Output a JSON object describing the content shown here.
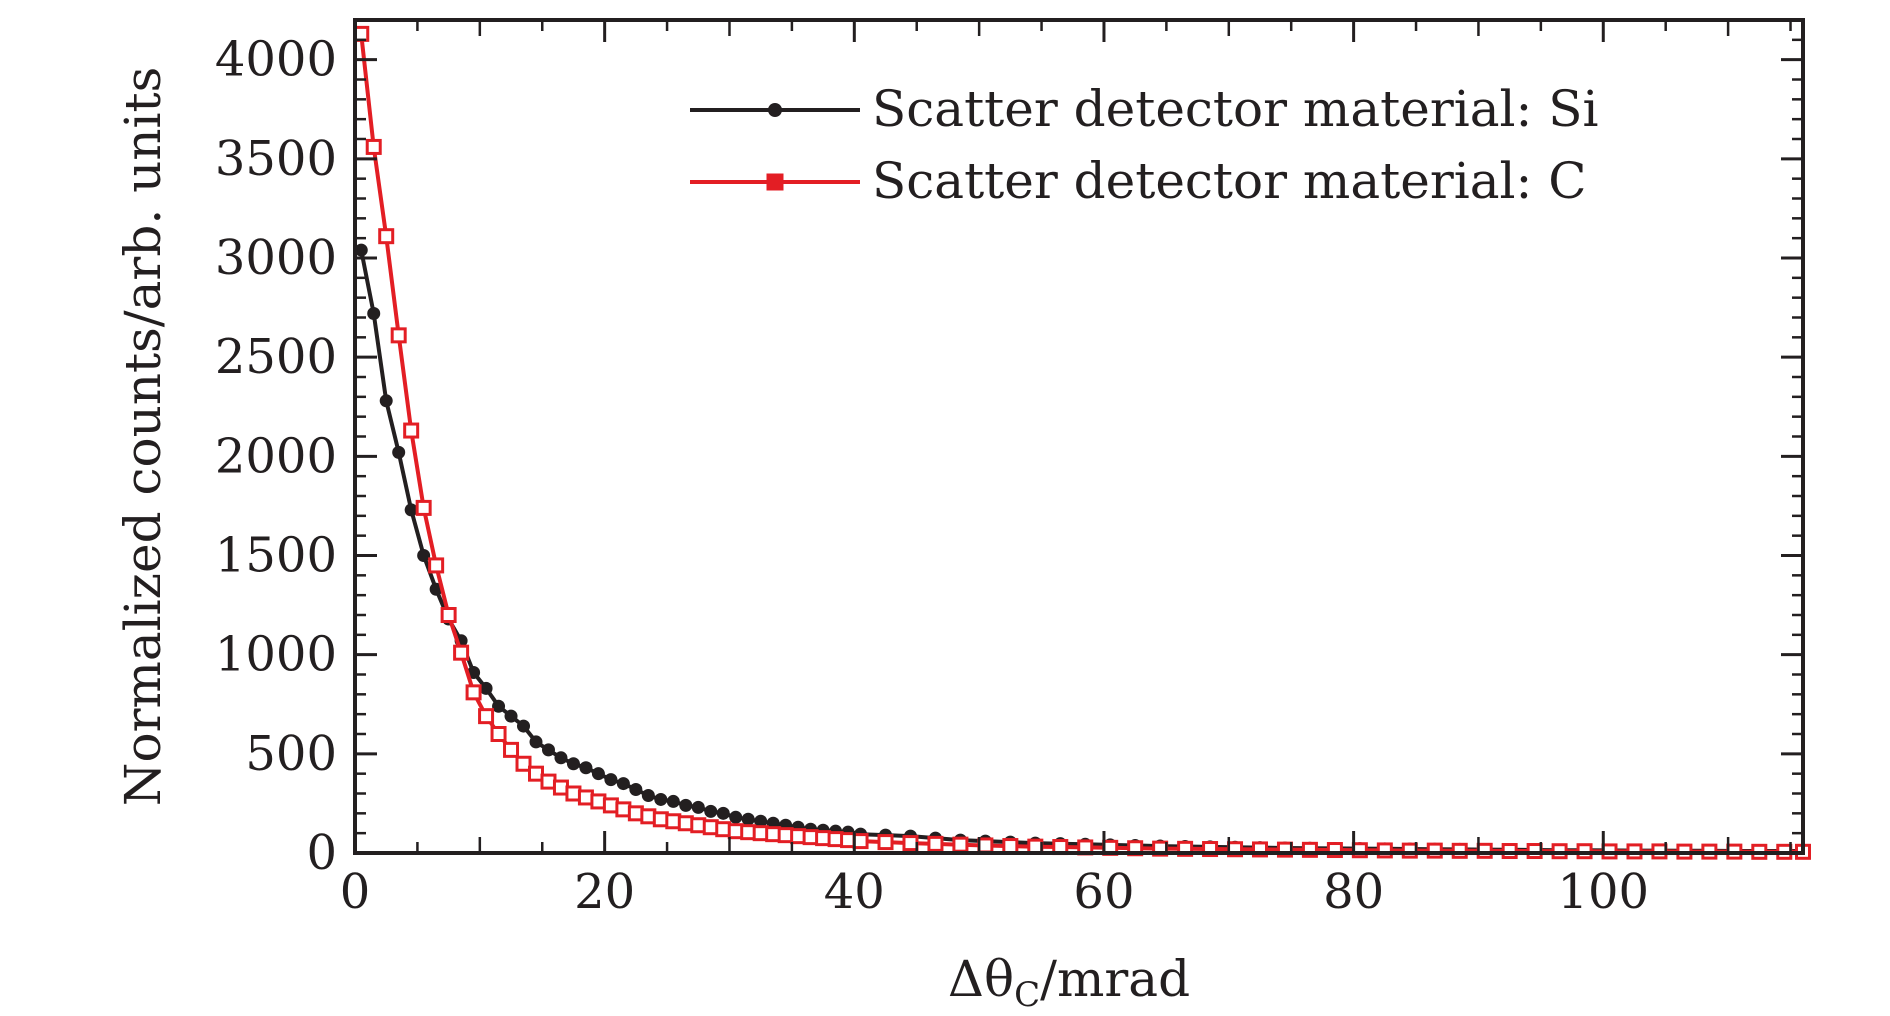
{
  "chart_data": {
    "type": "line",
    "xlabel_prefix": "Δθ",
    "xlabel_subscript": "C",
    "xlabel_suffix": "/mrad",
    "ylabel": "Normalized counts/arb. units",
    "xlim": [
      0,
      116
    ],
    "ylim": [
      0,
      4200
    ],
    "x_ticks": [
      0,
      20,
      40,
      60,
      80,
      100
    ],
    "y_ticks": [
      0,
      500,
      1000,
      1500,
      2000,
      2500,
      3000,
      3500,
      4000
    ],
    "x_tick_labels": [
      "0",
      "20",
      "40",
      "60",
      "80",
      "100"
    ],
    "y_tick_labels": [
      "0",
      "500",
      "1000",
      "1500",
      "2000",
      "2500",
      "3000",
      "3500",
      "4000"
    ],
    "grid": false,
    "legend_position": "top-right",
    "series": [
      {
        "name": "Scatter detector material: Si",
        "color": "#231f20",
        "marker": "circle",
        "x": [
          0.5,
          1.5,
          2.5,
          3.5,
          4.5,
          5.5,
          6.5,
          7.5,
          8.5,
          9.5,
          10.5,
          11.5,
          12.5,
          13.5,
          14.5,
          15.5,
          16.5,
          17.5,
          18.5,
          19.5,
          20.5,
          21.5,
          22.5,
          23.5,
          24.5,
          25.5,
          26.5,
          27.5,
          28.5,
          29.5,
          30.5,
          31.5,
          32.5,
          33.5,
          34.5,
          35.5,
          36.5,
          37.5,
          38.5,
          39.5,
          40.5,
          42.5,
          44.5,
          46.5,
          48.5,
          50.5,
          52.5,
          54.5,
          56.5,
          58.5,
          60.5,
          62.5,
          64.5,
          66.5,
          68.5,
          70.5,
          72.5,
          74.5,
          76.5,
          78.5,
          80.5,
          82.5,
          84.5,
          86.5,
          88.5,
          90.5,
          92.5,
          94.5,
          96.5,
          98.5,
          100.5,
          102.5,
          104.5,
          106.5,
          108.5,
          110.5,
          112.5,
          114.5,
          116
        ],
        "y": [
          3040,
          2720,
          2280,
          2020,
          1730,
          1500,
          1330,
          1180,
          1070,
          910,
          830,
          740,
          690,
          640,
          560,
          520,
          480,
          450,
          430,
          400,
          370,
          350,
          320,
          290,
          270,
          260,
          240,
          230,
          210,
          200,
          180,
          170,
          160,
          150,
          140,
          130,
          120,
          115,
          110,
          105,
          95,
          90,
          85,
          75,
          65,
          60,
          55,
          50,
          47,
          44,
          41,
          38,
          35,
          33,
          31,
          29,
          27,
          25,
          24,
          23,
          22,
          21,
          20,
          19,
          18,
          17,
          16,
          15,
          14,
          14,
          13,
          12,
          12,
          11,
          11,
          10,
          10,
          10,
          10
        ]
      },
      {
        "name": "Scatter detector material: C",
        "color": "#e31e24",
        "marker": "square",
        "x": [
          0.5,
          1.5,
          2.5,
          3.5,
          4.5,
          5.5,
          6.5,
          7.5,
          8.5,
          9.5,
          10.5,
          11.5,
          12.5,
          13.5,
          14.5,
          15.5,
          16.5,
          17.5,
          18.5,
          19.5,
          20.5,
          21.5,
          22.5,
          23.5,
          24.5,
          25.5,
          26.5,
          27.5,
          28.5,
          29.5,
          30.5,
          31.5,
          32.5,
          33.5,
          34.5,
          35.5,
          36.5,
          37.5,
          38.5,
          39.5,
          40.5,
          42.5,
          44.5,
          46.5,
          48.5,
          50.5,
          52.5,
          54.5,
          56.5,
          58.5,
          60.5,
          62.5,
          64.5,
          66.5,
          68.5,
          70.5,
          72.5,
          74.5,
          76.5,
          78.5,
          80.5,
          82.5,
          84.5,
          86.5,
          88.5,
          90.5,
          92.5,
          94.5,
          96.5,
          98.5,
          100.5,
          102.5,
          104.5,
          106.5,
          108.5,
          110.5,
          112.5,
          114.5,
          116
        ],
        "y": [
          4130,
          3560,
          3110,
          2610,
          2130,
          1740,
          1450,
          1200,
          1010,
          810,
          690,
          600,
          520,
          450,
          400,
          360,
          330,
          300,
          280,
          260,
          240,
          220,
          200,
          185,
          170,
          160,
          150,
          140,
          130,
          120,
          110,
          105,
          100,
          95,
          90,
          85,
          80,
          75,
          70,
          65,
          60,
          55,
          50,
          46,
          42,
          38,
          35,
          32,
          30,
          28,
          26,
          24,
          22,
          21,
          20,
          19,
          18,
          17,
          16,
          15,
          14,
          13,
          12,
          12,
          11,
          11,
          10,
          10,
          9,
          9,
          8,
          8,
          8,
          7,
          7,
          7,
          6,
          6,
          6
        ]
      }
    ]
  }
}
